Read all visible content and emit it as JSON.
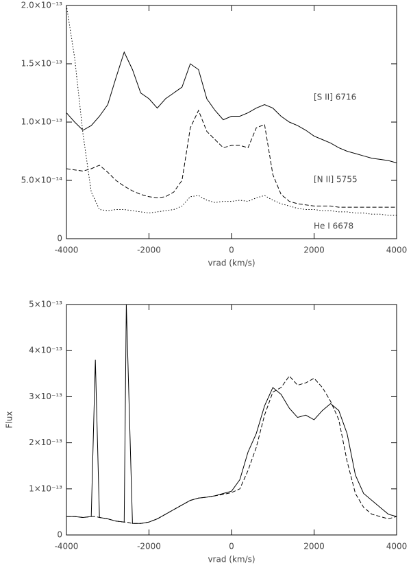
{
  "chart_data": [
    {
      "type": "line",
      "xlabel": "vrad (km/s)",
      "xlim": [
        -4000,
        4000
      ],
      "xticks": [
        -4000,
        -2000,
        0,
        2000,
        4000
      ],
      "ylim": [
        0,
        2e-13
      ],
      "yticks": [
        0,
        {
          "value": 5e-14,
          "label": "5.0×10⁻¹⁴"
        },
        {
          "value": 1e-13,
          "label": "1.0×10⁻¹³"
        },
        {
          "value": 1.5e-13,
          "label": "1.5×10⁻¹³"
        },
        {
          "value": 2e-13,
          "label": "2.0×10⁻¹³"
        }
      ],
      "x": [
        -4000,
        -3800,
        -3600,
        -3400,
        -3200,
        -3000,
        -2800,
        -2600,
        -2400,
        -2200,
        -2000,
        -1800,
        -1600,
        -1400,
        -1200,
        -1000,
        -800,
        -600,
        -400,
        -200,
        0,
        200,
        400,
        600,
        800,
        1000,
        1200,
        1400,
        1600,
        1800,
        2000,
        2200,
        2400,
        2600,
        2800,
        3000,
        3200,
        3400,
        3600,
        3800,
        4000
      ],
      "series": [
        {
          "name": "[S II] 6716",
          "color": "#000000",
          "linestyle": "solid",
          "values": [
            1.08e-13,
            1e-13,
            9.3e-14,
            9.7e-14,
            1.05e-13,
            1.15e-13,
            1.38e-13,
            1.6e-13,
            1.45e-13,
            1.25e-13,
            1.2e-13,
            1.12e-13,
            1.2e-13,
            1.25e-13,
            1.3e-13,
            1.5e-13,
            1.45e-13,
            1.2e-13,
            1.1e-13,
            1.02e-13,
            1.05e-13,
            1.05e-13,
            1.08e-13,
            1.12e-13,
            1.15e-13,
            1.12e-13,
            1.05e-13,
            1e-13,
            9.7e-14,
            9.3e-14,
            8.8e-14,
            8.5e-14,
            8.2e-14,
            7.8e-14,
            7.5e-14,
            7.3e-14,
            7.1e-14,
            6.9e-14,
            6.8e-14,
            6.7e-14,
            6.5e-14
          ]
        },
        {
          "name": "[N II] 5755",
          "color": "#000000",
          "linestyle": "dashed",
          "values": [
            6e-14,
            5.9e-14,
            5.8e-14,
            6e-14,
            6.3e-14,
            5.7e-14,
            5e-14,
            4.5e-14,
            4.1e-14,
            3.8e-14,
            3.6e-14,
            3.5e-14,
            3.6e-14,
            4e-14,
            5e-14,
            9.5e-14,
            1.1e-13,
            9.2e-14,
            8.5e-14,
            7.8e-14,
            8e-14,
            8e-14,
            7.8e-14,
            9.5e-14,
            9.8e-14,
            5.5e-14,
            3.8e-14,
            3.2e-14,
            3e-14,
            2.9e-14,
            2.8e-14,
            2.8e-14,
            2.8e-14,
            2.7e-14,
            2.7e-14,
            2.7e-14,
            2.7e-14,
            2.7e-14,
            2.7e-14,
            2.7e-14,
            2.7e-14
          ]
        },
        {
          "name": "He I 6678",
          "color": "#000000",
          "linestyle": "dotted",
          "values": [
            2e-13,
            1.55e-13,
            9e-14,
            4e-14,
            2.5e-14,
            2.4e-14,
            2.5e-14,
            2.5e-14,
            2.4e-14,
            2.3e-14,
            2.2e-14,
            2.3e-14,
            2.4e-14,
            2.5e-14,
            2.8e-14,
            3.6e-14,
            3.7e-14,
            3.3e-14,
            3.1e-14,
            3.2e-14,
            3.2e-14,
            3.3e-14,
            3.2e-14,
            3.5e-14,
            3.7e-14,
            3.3e-14,
            3e-14,
            2.8e-14,
            2.6e-14,
            2.5e-14,
            2.5e-14,
            2.4e-14,
            2.4e-14,
            2.3e-14,
            2.3e-14,
            2.2e-14,
            2.2e-14,
            2.1e-14,
            2.1e-14,
            2e-14,
            2e-14
          ]
        }
      ]
    },
    {
      "type": "line",
      "xlabel": "vrad (km/s)",
      "ylabel": "Flux",
      "xlim": [
        -4000,
        4000
      ],
      "xticks": [
        -4000,
        -2000,
        0,
        2000,
        4000
      ],
      "ylim": [
        0,
        5e-13
      ],
      "yticks": [
        0,
        {
          "value": 1e-13,
          "label": "1×10⁻¹³"
        },
        {
          "value": 2e-13,
          "label": "2×10⁻¹³"
        },
        {
          "value": 3e-13,
          "label": "3×10⁻¹³"
        },
        {
          "value": 4e-13,
          "label": "4×10⁻¹³"
        },
        {
          "value": 5e-13,
          "label": "5×10⁻¹³"
        }
      ],
      "x": [
        -4000,
        -3800,
        -3600,
        -3400,
        -3300,
        -3200,
        -3000,
        -2800,
        -2600,
        -2550,
        -2400,
        -2200,
        -2000,
        -1800,
        -1600,
        -1400,
        -1200,
        -1000,
        -800,
        -600,
        -400,
        -200,
        0,
        200,
        400,
        600,
        800,
        1000,
        1200,
        1400,
        1600,
        1800,
        2000,
        2200,
        2400,
        2600,
        2800,
        3000,
        3200,
        3400,
        3600,
        3800,
        4000
      ],
      "series": [
        {
          "color": "#000000",
          "linestyle": "solid",
          "values": [
            4e-14,
            4e-14,
            3.8e-14,
            4e-14,
            3.8e-13,
            3.8e-14,
            3.5e-14,
            3e-14,
            2.8e-14,
            5e-13,
            2.5e-14,
            2.5e-14,
            2.8e-14,
            3.5e-14,
            4.5e-14,
            5.5e-14,
            6.5e-14,
            7.5e-14,
            8e-14,
            8.2e-14,
            8.5e-14,
            9e-14,
            9.5e-14,
            1.2e-13,
            1.8e-13,
            2.2e-13,
            2.8e-13,
            3.2e-13,
            3.05e-13,
            2.75e-13,
            2.55e-13,
            2.6e-13,
            2.5e-13,
            2.7e-13,
            2.85e-13,
            2.7e-13,
            2.2e-13,
            1.3e-13,
            9e-14,
            7.5e-14,
            6e-14,
            4.5e-14,
            4e-14
          ]
        },
        {
          "color": "#000000",
          "linestyle": "dashed",
          "values": [
            4e-14,
            4e-14,
            3.8e-14,
            4e-14,
            4e-14,
            3.8e-14,
            3.5e-14,
            3e-14,
            2.8e-14,
            2.8e-14,
            2.5e-14,
            2.5e-14,
            2.8e-14,
            3.5e-14,
            4.5e-14,
            5.5e-14,
            6.5e-14,
            7.5e-14,
            8e-14,
            8.2e-14,
            8.5e-14,
            8.8e-14,
            9.2e-14,
            1e-13,
            1.4e-13,
            1.9e-13,
            2.6e-13,
            3.1e-13,
            3.2e-13,
            3.45e-13,
            3.25e-13,
            3.3e-13,
            3.4e-13,
            3.2e-13,
            2.9e-13,
            2.5e-13,
            1.6e-13,
            9e-14,
            6e-14,
            4.5e-14,
            4e-14,
            3.5e-14,
            4e-14
          ]
        }
      ]
    }
  ]
}
